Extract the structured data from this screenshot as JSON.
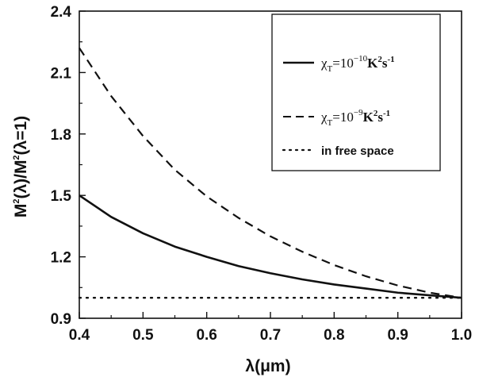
{
  "chart_data": {
    "type": "line",
    "xlabel": "λ(μm)",
    "ylabel": "M²(λ)/M²(λ=1)",
    "xlim": [
      0.4,
      1.0
    ],
    "ylim": [
      0.9,
      2.4
    ],
    "x_ticks": [
      "0.4",
      "0.5",
      "0.6",
      "0.7",
      "0.8",
      "0.9",
      "1.0"
    ],
    "y_ticks": [
      "0.9",
      "1.2",
      "1.5",
      "1.8",
      "2.1",
      "2.4"
    ],
    "grid": false,
    "legend_position": "top-right",
    "series": [
      {
        "name": "χT=10−10K²s−1",
        "style": "solid",
        "x": [
          0.4,
          0.45,
          0.5,
          0.55,
          0.6,
          0.65,
          0.7,
          0.75,
          0.8,
          0.85,
          0.9,
          0.95,
          1.0
        ],
        "y": [
          1.5,
          1.395,
          1.315,
          1.25,
          1.2,
          1.155,
          1.12,
          1.09,
          1.065,
          1.045,
          1.025,
          1.012,
          1.0
        ]
      },
      {
        "name": "χT=10−9K²s−1",
        "style": "dashed",
        "x": [
          0.4,
          0.45,
          0.5,
          0.55,
          0.6,
          0.65,
          0.7,
          0.75,
          0.8,
          0.85,
          0.9,
          0.95,
          1.0
        ],
        "y": [
          2.22,
          1.985,
          1.79,
          1.625,
          1.495,
          1.39,
          1.3,
          1.225,
          1.16,
          1.105,
          1.06,
          1.025,
          1.0
        ]
      },
      {
        "name": "in free space",
        "style": "dotted",
        "x": [
          0.4,
          1.0
        ],
        "y": [
          1.0,
          1.0
        ]
      }
    ]
  },
  "legend": {
    "entry1": {
      "base": "χ",
      "sub": "T",
      "eq": "=10",
      "exp": "−10",
      "unit": "K",
      "unit_exp": "2",
      "s": "s",
      "s_exp": "-1"
    },
    "entry2": {
      "base": "χ",
      "sub": "T",
      "eq": "=10",
      "exp": "−9",
      "unit": "K",
      "unit_exp": "2",
      "s": "s",
      "s_exp": "-1"
    },
    "entry3": {
      "label": "in free space"
    }
  },
  "axis_title": {
    "x": "λ(μm)",
    "y_parts": {
      "a": "M",
      "a_sup": "2",
      "b": "(λ)/M",
      "b_sup": "2",
      "c": "(λ=1)"
    }
  }
}
